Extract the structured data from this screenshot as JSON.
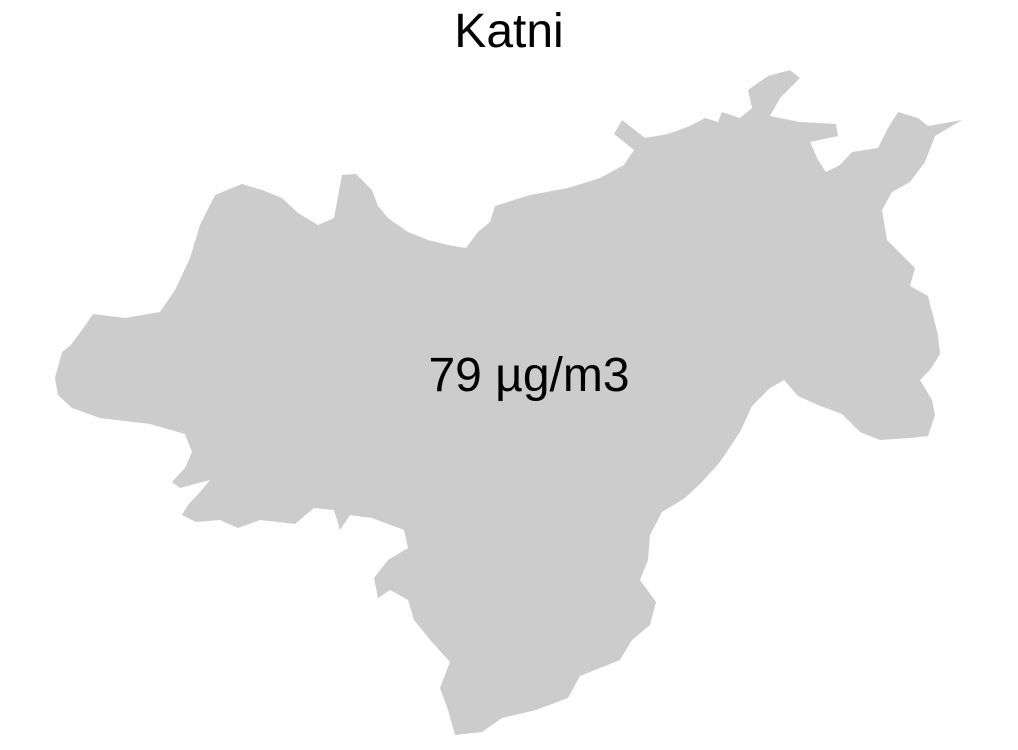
{
  "map": {
    "title": "Katni",
    "value_label": "79 µg/m3",
    "region_fill": "#cccccc",
    "background": "#ffffff",
    "text_color": "#000000"
  }
}
